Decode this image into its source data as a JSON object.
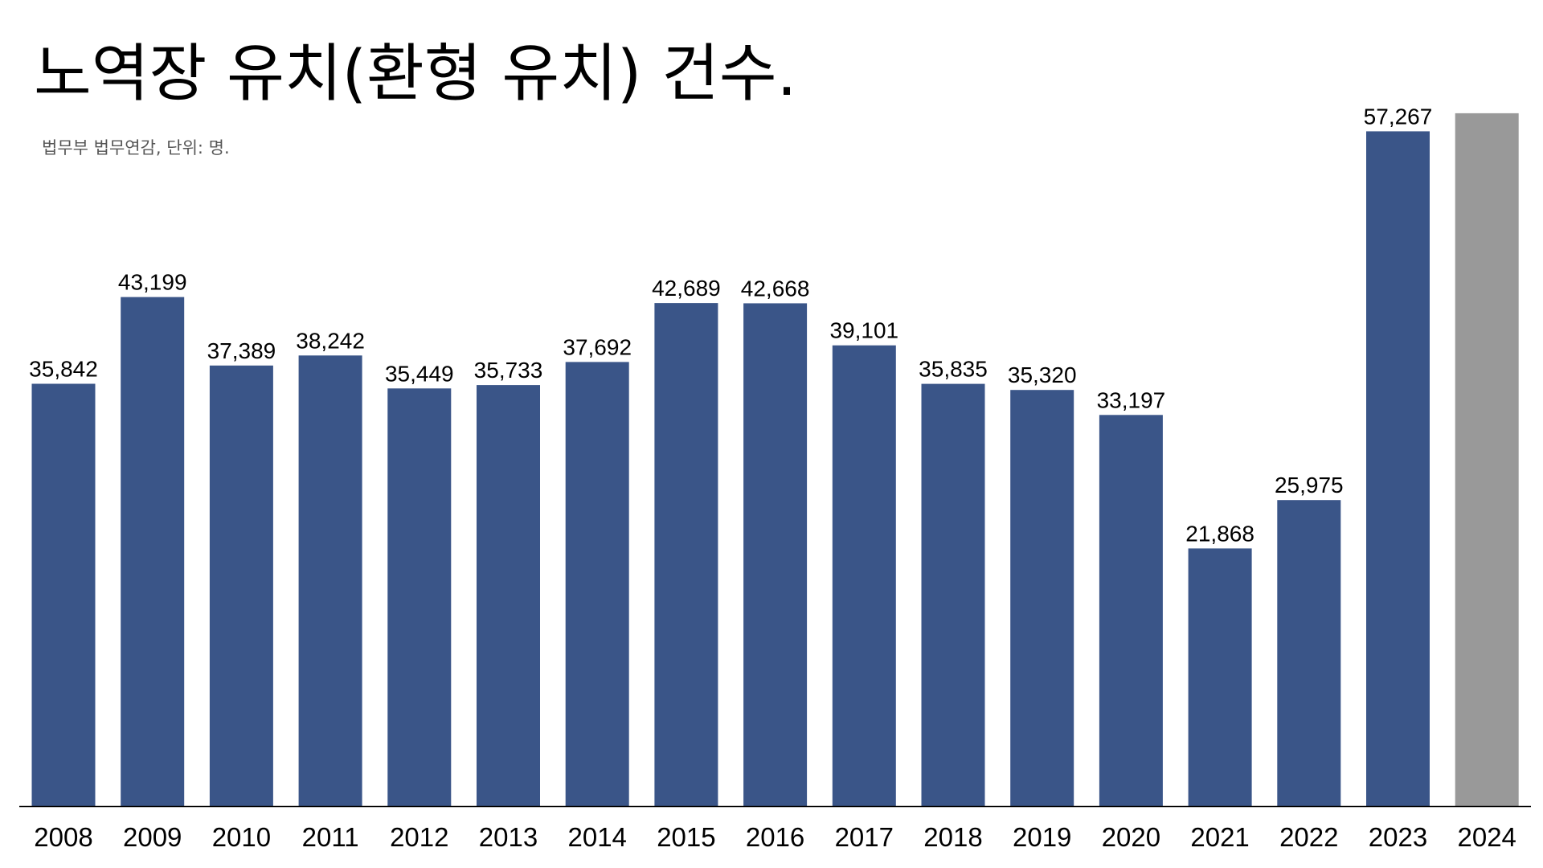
{
  "chart_data": {
    "type": "bar",
    "title": "노역장 유치(환형 유치) 건수.",
    "subtitle": "법무부 법무연감, 단위: 명.",
    "xlabel": "",
    "ylabel": "",
    "categories": [
      "2008",
      "2009",
      "2010",
      "2011",
      "2012",
      "2013",
      "2014",
      "2015",
      "2016",
      "2017",
      "2018",
      "2019",
      "2020",
      "2021",
      "2022",
      "2023",
      "2024"
    ],
    "series": [
      {
        "values": [
          35842,
          43199,
          37389,
          38242,
          35449,
          35733,
          37692,
          42689,
          42668,
          39101,
          35835,
          35320,
          33197,
          21868,
          25975,
          57267,
          58800
        ]
      }
    ],
    "data_labels": [
      "35,842",
      "43,199",
      "37,389",
      "38,242",
      "35,449",
      "35,733",
      "37,692",
      "42,689",
      "42,668",
      "39,101",
      "35,835",
      "35,320",
      "33,197",
      "21,868",
      "25,975",
      "57,267",
      ""
    ],
    "ylim": [
      0,
      65000
    ],
    "grid": false,
    "legend": "none",
    "colors": {
      "bar": "#3a5588",
      "highlight_bar": "#999999",
      "axis": "#000000"
    },
    "highlight_index": 16
  }
}
